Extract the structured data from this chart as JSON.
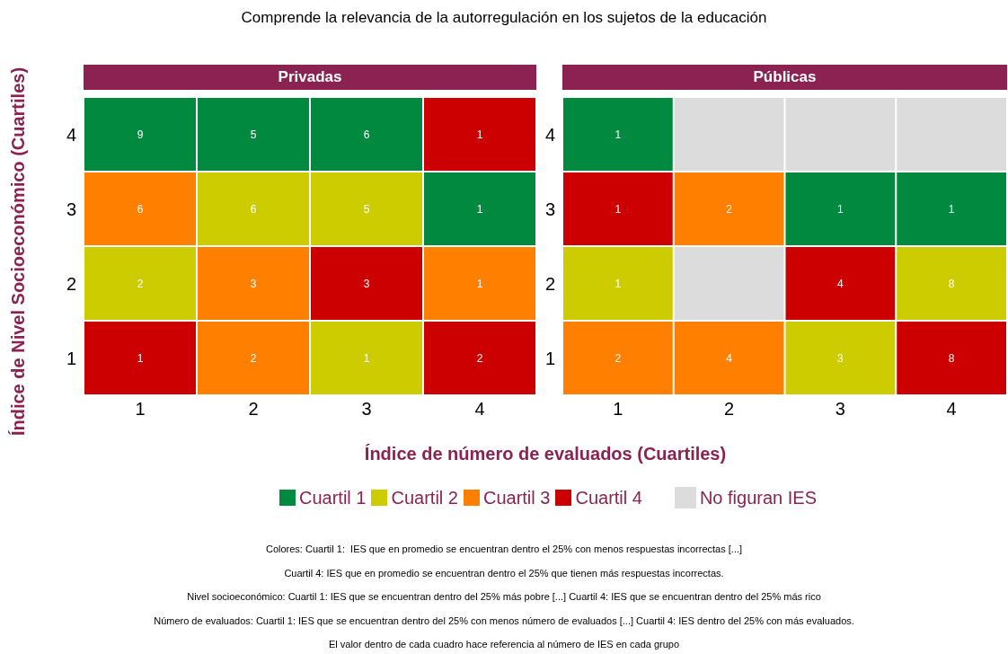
{
  "chart_data": [
    {
      "type": "heatmap",
      "title": "Comprende la relevancia de la autorregulación en los sujetos de la educación",
      "subtitle": "Privadas",
      "xlabel": "Índice de número de evaluados (Cuartiles)",
      "ylabel": "Índice de Nivel Socioeconómico (Cuartiles)",
      "categories": [
        "1",
        "2",
        "3",
        "4"
      ],
      "y_categories": [
        "4",
        "3",
        "2",
        "1"
      ],
      "data_labels": true,
      "cells": [
        [
          9,
          5,
          6,
          1
        ],
        [
          6,
          6,
          5,
          1
        ],
        [
          2,
          3,
          3,
          1
        ],
        [
          1,
          2,
          1,
          2
        ]
      ],
      "colors": [
        [
          "#00893f",
          "#00893f",
          "#00893f",
          "#cc0000"
        ],
        [
          "#ff8000",
          "#cccc00",
          "#cccc00",
          "#00893f"
        ],
        [
          "#cccc00",
          "#ff8000",
          "#cc0000",
          "#ff8000"
        ],
        [
          "#cc0000",
          "#ff8000",
          "#cccc00",
          "#cc0000"
        ]
      ],
      "annotations": [
        "Colores: Cuartil 1:  IES que en promedio se encuentran dentro el 25% con menos respuestas incorrectas [...]",
        "Cuartil 4: IES que en promedio se encuentran dentro el 25% que tienen más respuestas incorrectas.",
        "Nivel socioeconómico: Cuartil 1: IES que se encuentran dentro del 25% más pobre [...] Cuartil 4: IES que se encuentran dentro del 25% más rico",
        "Número de evaluados: Cuartil 1: IES que se encuentran dentro del 25% con menos número de evaluados [...] Cuartil 4: IES dentro del 25% con más evaluados.",
        "El valor dentro de cada cuadro hace referencia al número de IES en cada grupo"
      ]
    },
    {
      "type": "heatmap",
      "subtitle": "Públicas",
      "categories": [
        "1",
        "2",
        "3",
        "4"
      ],
      "y_categories": [
        "4",
        "3",
        "2",
        "1"
      ],
      "data_labels": true,
      "cells": [
        [
          1,
          null,
          null,
          null
        ],
        [
          1,
          2,
          1,
          1
        ],
        [
          1,
          null,
          4,
          8
        ],
        [
          2,
          4,
          3,
          8
        ]
      ],
      "colors": [
        [
          "#00893f",
          "#dcdcdc",
          "#dcdcdc",
          "#dcdcdc"
        ],
        [
          "#cc0000",
          "#ff8000",
          "#00893f",
          "#00893f"
        ],
        [
          "#cccc00",
          "#dcdcdc",
          "#cc0000",
          "#cccc00"
        ],
        [
          "#ff8000",
          "#ff8000",
          "#cccc00",
          "#cc0000"
        ]
      ]
    },
    {
      "type": "other",
      "categories": [
        "Cuartil 1",
        "Cuartil 2",
        "Cuartil 3",
        "Cuartil 4",
        "No figuran IES"
      ],
      "colors": [
        "#00893f",
        "#cccc00",
        "#ff8000",
        "#cc0000",
        "#dcdcdc"
      ]
    }
  ]
}
